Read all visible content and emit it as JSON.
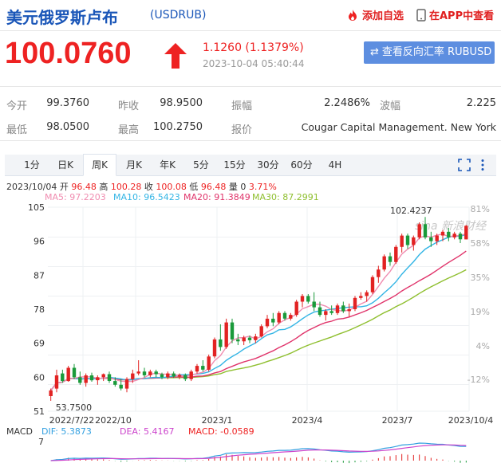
{
  "header": {
    "title": "美元俄罗斯卢布",
    "code": "(USDRUB)",
    "add_favorite": "添加自选",
    "app_view": "在APP中查看"
  },
  "quote": {
    "price": "100.0760",
    "change": "1.1260 (1.1379%)",
    "time": "2023-10-04 05:40:44",
    "reverse_button": "查看反向汇率 RUBUSD"
  },
  "stats": {
    "row1": [
      {
        "label": "今开",
        "value": "99.3760"
      },
      {
        "label": "昨收",
        "value": "98.9500"
      },
      {
        "label": "振幅",
        "value": "2.2486%"
      },
      {
        "label": "波幅",
        "value": "2.225"
      }
    ],
    "row2": [
      {
        "label": "最低",
        "value": "98.0500"
      },
      {
        "label": "最高",
        "value": "100.2750"
      },
      {
        "label": "报价",
        "value": "Cougar Capital Management. New York"
      }
    ]
  },
  "tabs": [
    "1分",
    "日K",
    "周K",
    "月K",
    "年K",
    "5分",
    "15分",
    "30分",
    "60分",
    "4H"
  ],
  "active_tab": "周K",
  "ohlc": {
    "date": "2023/10/04",
    "open_label": "开",
    "open": "96.48",
    "high_label": "高",
    "high": "100.28",
    "close_label": "收",
    "close": "100.08",
    "low_label": "低",
    "low": "96.48",
    "vol_label": "量",
    "vol": "0",
    "pct": "3.71%"
  },
  "ma_legend": {
    "ma5": "MA5: 97.2203",
    "ma10": "MA10: 96.5423",
    "ma20": "MA20: 91.3849",
    "ma30": "MA30: 87.2991"
  },
  "macd_legend": {
    "label": "MACD",
    "dif": "DIF: 5.3873",
    "dea": "DEA: 5.4167",
    "macd": "MACD: -0.0589"
  },
  "watermark": "sina 新浪财经",
  "colors": {
    "up": "#e22222",
    "down": "#1a9a3a",
    "ma5": "#f08cb0",
    "ma10": "#33b5e5",
    "ma20": "#e0336a",
    "ma30": "#8fbf2f",
    "brand": "#1a56b8"
  },
  "chart_data": {
    "type": "candlestick",
    "y_ticks": [
      "105",
      "96",
      "87",
      "78",
      "69",
      "60",
      "51"
    ],
    "y_ticks_right": [
      "81%",
      "58%",
      "35%",
      "19%",
      "4%",
      "-12%"
    ],
    "x_ticks": [
      "2022/7/22",
      "2022/10",
      "2023/1",
      "2023/4",
      "2023/7",
      "2023/10/4"
    ],
    "ylim": [
      51,
      105
    ],
    "max_label": "102.4237",
    "min_label": "53.7500",
    "macd_tick": "7",
    "candles": [
      {
        "o": 55.0,
        "h": 57.0,
        "l": 53.75,
        "c": 56.5
      },
      {
        "o": 57.0,
        "h": 62.0,
        "l": 56.0,
        "c": 60.5
      },
      {
        "o": 61.0,
        "h": 62.0,
        "l": 58.5,
        "c": 59.0
      },
      {
        "o": 59.0,
        "h": 63.0,
        "l": 58.8,
        "c": 62.5
      },
      {
        "o": 62.5,
        "h": 63.5,
        "l": 59.5,
        "c": 60.0
      },
      {
        "o": 60.0,
        "h": 61.5,
        "l": 58.0,
        "c": 58.5
      },
      {
        "o": 58.5,
        "h": 61.0,
        "l": 57.5,
        "c": 60.5
      },
      {
        "o": 60.5,
        "h": 61.2,
        "l": 58.8,
        "c": 59.2
      },
      {
        "o": 59.2,
        "h": 60.5,
        "l": 58.0,
        "c": 60.0
      },
      {
        "o": 60.0,
        "h": 61.0,
        "l": 59.0,
        "c": 60.8
      },
      {
        "o": 60.8,
        "h": 61.5,
        "l": 58.5,
        "c": 59.0
      },
      {
        "o": 59.0,
        "h": 60.0,
        "l": 57.5,
        "c": 58.0
      },
      {
        "o": 58.0,
        "h": 59.5,
        "l": 56.5,
        "c": 57.0
      },
      {
        "o": 57.0,
        "h": 60.0,
        "l": 56.0,
        "c": 59.5
      },
      {
        "o": 59.5,
        "h": 62.0,
        "l": 58.5,
        "c": 61.0
      },
      {
        "o": 61.0,
        "h": 64.5,
        "l": 60.5,
        "c": 61.5
      },
      {
        "o": 61.5,
        "h": 62.5,
        "l": 60.0,
        "c": 60.5
      },
      {
        "o": 60.5,
        "h": 62.0,
        "l": 60.0,
        "c": 61.5
      },
      {
        "o": 61.5,
        "h": 62.0,
        "l": 60.0,
        "c": 60.8
      },
      {
        "o": 60.8,
        "h": 61.2,
        "l": 59.5,
        "c": 60.0
      },
      {
        "o": 60.0,
        "h": 61.5,
        "l": 59.5,
        "c": 61.0
      },
      {
        "o": 61.0,
        "h": 61.5,
        "l": 59.8,
        "c": 60.2
      },
      {
        "o": 60.2,
        "h": 61.0,
        "l": 59.5,
        "c": 60.6
      },
      {
        "o": 60.6,
        "h": 61.0,
        "l": 59.0,
        "c": 59.5
      },
      {
        "o": 59.5,
        "h": 62.0,
        "l": 59.0,
        "c": 61.5
      },
      {
        "o": 61.5,
        "h": 63.5,
        "l": 61.0,
        "c": 63.0
      },
      {
        "o": 63.0,
        "h": 64.5,
        "l": 61.5,
        "c": 62.0
      },
      {
        "o": 62.0,
        "h": 66.0,
        "l": 61.5,
        "c": 65.5
      },
      {
        "o": 65.5,
        "h": 70.5,
        "l": 65.0,
        "c": 70.0
      },
      {
        "o": 70.0,
        "h": 74.0,
        "l": 67.0,
        "c": 68.0
      },
      {
        "o": 68.0,
        "h": 75.5,
        "l": 67.5,
        "c": 74.5
      },
      {
        "o": 74.5,
        "h": 75.5,
        "l": 69.0,
        "c": 70.0
      },
      {
        "o": 70.0,
        "h": 71.5,
        "l": 68.5,
        "c": 69.5
      },
      {
        "o": 69.5,
        "h": 71.0,
        "l": 68.5,
        "c": 70.5
      },
      {
        "o": 70.5,
        "h": 71.0,
        "l": 69.0,
        "c": 69.8
      },
      {
        "o": 69.8,
        "h": 71.5,
        "l": 69.0,
        "c": 70.8
      },
      {
        "o": 70.8,
        "h": 74.0,
        "l": 70.5,
        "c": 73.5
      },
      {
        "o": 73.5,
        "h": 76.5,
        "l": 73.0,
        "c": 75.5
      },
      {
        "o": 75.5,
        "h": 77.0,
        "l": 73.5,
        "c": 74.5
      },
      {
        "o": 74.5,
        "h": 77.5,
        "l": 74.0,
        "c": 77.0
      },
      {
        "o": 77.0,
        "h": 77.5,
        "l": 75.0,
        "c": 75.5
      },
      {
        "o": 75.5,
        "h": 77.0,
        "l": 75.0,
        "c": 76.5
      },
      {
        "o": 76.5,
        "h": 80.5,
        "l": 76.0,
        "c": 80.0
      },
      {
        "o": 80.0,
        "h": 82.0,
        "l": 78.5,
        "c": 81.5
      },
      {
        "o": 81.5,
        "h": 82.0,
        "l": 79.5,
        "c": 80.0
      },
      {
        "o": 80.0,
        "h": 82.5,
        "l": 77.5,
        "c": 78.5
      },
      {
        "o": 78.5,
        "h": 80.0,
        "l": 76.0,
        "c": 76.5
      },
      {
        "o": 76.5,
        "h": 78.0,
        "l": 75.0,
        "c": 77.5
      },
      {
        "o": 77.5,
        "h": 79.0,
        "l": 76.5,
        "c": 77.0
      },
      {
        "o": 77.0,
        "h": 79.5,
        "l": 76.5,
        "c": 79.0
      },
      {
        "o": 79.0,
        "h": 80.0,
        "l": 77.0,
        "c": 77.5
      },
      {
        "o": 77.5,
        "h": 79.5,
        "l": 76.0,
        "c": 78.0
      },
      {
        "o": 78.0,
        "h": 81.5,
        "l": 77.5,
        "c": 81.0
      },
      {
        "o": 81.0,
        "h": 82.5,
        "l": 80.5,
        "c": 81.5
      },
      {
        "o": 81.5,
        "h": 83.0,
        "l": 80.0,
        "c": 82.5
      },
      {
        "o": 82.5,
        "h": 87.0,
        "l": 82.0,
        "c": 86.5
      },
      {
        "o": 86.5,
        "h": 89.5,
        "l": 85.0,
        "c": 88.5
      },
      {
        "o": 88.5,
        "h": 92.5,
        "l": 88.0,
        "c": 92.0
      },
      {
        "o": 92.0,
        "h": 93.0,
        "l": 89.5,
        "c": 90.5
      },
      {
        "o": 90.5,
        "h": 95.0,
        "l": 90.0,
        "c": 94.5
      },
      {
        "o": 94.5,
        "h": 98.0,
        "l": 93.0,
        "c": 97.5
      },
      {
        "o": 97.5,
        "h": 98.0,
        "l": 94.0,
        "c": 95.0
      },
      {
        "o": 95.0,
        "h": 97.5,
        "l": 93.5,
        "c": 97.0
      },
      {
        "o": 97.0,
        "h": 101.0,
        "l": 96.5,
        "c": 100.5
      },
      {
        "o": 100.5,
        "h": 102.42,
        "l": 96.5,
        "c": 97.0
      },
      {
        "o": 97.0,
        "h": 98.5,
        "l": 94.5,
        "c": 96.0
      },
      {
        "o": 96.0,
        "h": 98.0,
        "l": 95.0,
        "c": 97.5
      },
      {
        "o": 97.5,
        "h": 99.0,
        "l": 96.0,
        "c": 98.5
      },
      {
        "o": 98.5,
        "h": 99.5,
        "l": 96.0,
        "c": 97.0
      },
      {
        "o": 97.0,
        "h": 98.5,
        "l": 96.5,
        "c": 98.0
      },
      {
        "o": 98.0,
        "h": 98.5,
        "l": 95.5,
        "c": 96.5
      },
      {
        "o": 96.48,
        "h": 100.28,
        "l": 96.48,
        "c": 100.08
      }
    ]
  }
}
